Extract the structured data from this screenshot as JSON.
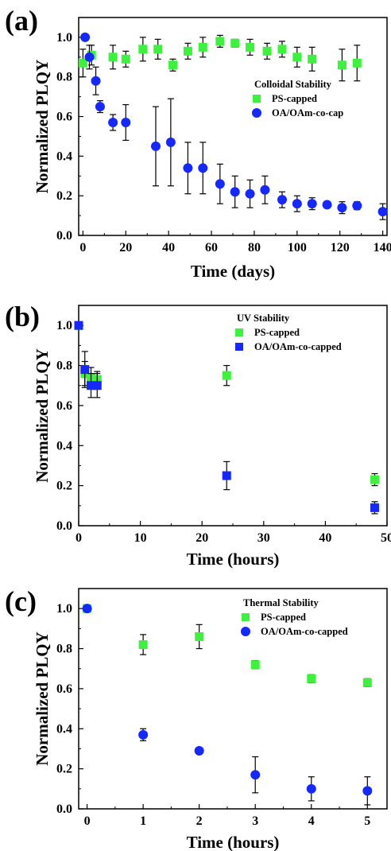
{
  "chart_data": [
    {
      "panel": "(a)",
      "type": "scatter",
      "xlabel": "Time (days)",
      "ylabel": "Normalized PLQY",
      "xlim": [
        -2,
        142
      ],
      "ylim": [
        0,
        1.1
      ],
      "xticks": [
        0,
        20,
        40,
        60,
        80,
        100,
        120,
        140
      ],
      "yticks": [
        0.0,
        0.2,
        0.4,
        0.6,
        0.8,
        1.0
      ],
      "grid": false,
      "legend": {
        "position": "top-right",
        "title": "Colloidal Stability"
      },
      "series": [
        {
          "name": "PS-capped",
          "marker": "square",
          "color": "#3cf23c",
          "x": [
            0,
            4,
            14,
            20,
            28,
            35,
            42,
            49,
            56,
            64,
            71,
            78,
            86,
            93,
            100,
            107,
            121,
            128
          ],
          "y": [
            0.87,
            0.91,
            0.9,
            0.89,
            0.94,
            0.94,
            0.86,
            0.93,
            0.95,
            0.98,
            0.97,
            0.95,
            0.93,
            0.94,
            0.9,
            0.89,
            0.86,
            0.87
          ],
          "err": [
            0.07,
            0.05,
            0.06,
            0.04,
            0.06,
            0.05,
            0.03,
            0.04,
            0.05,
            0.03,
            0.02,
            0.04,
            0.04,
            0.04,
            0.05,
            0.06,
            0.08,
            0.09
          ]
        },
        {
          "name": "OA/OAm-co-cap",
          "marker": "circle",
          "color": "#1428ff",
          "x": [
            1,
            3,
            6,
            8,
            14,
            20,
            34,
            41,
            49,
            56,
            64,
            71,
            78,
            85,
            93,
            100,
            107,
            114,
            121,
            128,
            140
          ],
          "y": [
            1.0,
            0.9,
            0.78,
            0.65,
            0.57,
            0.57,
            0.45,
            0.47,
            0.34,
            0.34,
            0.26,
            0.22,
            0.21,
            0.23,
            0.18,
            0.16,
            0.16,
            0.155,
            0.14,
            0.15,
            0.12
          ],
          "err": [
            0.0,
            0.06,
            0.07,
            0.03,
            0.04,
            0.09,
            0.2,
            0.22,
            0.13,
            0.13,
            0.1,
            0.08,
            0.07,
            0.07,
            0.04,
            0.04,
            0.03,
            0.01,
            0.03,
            0.02,
            0.04
          ]
        }
      ]
    },
    {
      "panel": "(b)",
      "type": "scatter",
      "xlabel": "Time (hours)",
      "ylabel": "Normalized PLQY",
      "xlim": [
        0,
        50
      ],
      "ylim": [
        0,
        1.1
      ],
      "xticks": [
        0,
        10,
        20,
        30,
        40,
        50
      ],
      "yticks": [
        0.0,
        0.2,
        0.4,
        0.6,
        0.8,
        1.0
      ],
      "grid": false,
      "legend": {
        "position": "top-right",
        "title": "UV Stability"
      },
      "series": [
        {
          "name": "PS-capped",
          "marker": "square",
          "color": "#3cf23c",
          "x": [
            0,
            1,
            2,
            3,
            24,
            48
          ],
          "y": [
            1.0,
            0.76,
            0.74,
            0.73,
            0.75,
            0.23
          ],
          "err": [
            0.0,
            0.06,
            0.05,
            0.04,
            0.05,
            0.03
          ]
        },
        {
          "name": "OA/OAm-co-capped",
          "marker": "square",
          "color": "#1428ff",
          "x": [
            0,
            1,
            2,
            3,
            24,
            48
          ],
          "y": [
            1.0,
            0.78,
            0.7,
            0.7,
            0.25,
            0.09
          ],
          "err": [
            0.0,
            0.09,
            0.06,
            0.06,
            0.07,
            0.03
          ]
        }
      ]
    },
    {
      "panel": "(c)",
      "type": "scatter",
      "xlabel": "Time (hours)",
      "ylabel": "Normalized PLQY",
      "xlim": [
        -0.15,
        5.35
      ],
      "ylim": [
        0,
        1.1
      ],
      "xticks": [
        0,
        1,
        2,
        3,
        4,
        5
      ],
      "yticks": [
        0.0,
        0.2,
        0.4,
        0.6,
        0.8,
        1.0
      ],
      "grid": false,
      "legend": {
        "position": "top-right",
        "title": "Thermal Stability"
      },
      "series": [
        {
          "name": "PS-capped",
          "marker": "square",
          "color": "#3cf23c",
          "x": [
            0,
            1,
            2,
            3,
            4,
            5
          ],
          "y": [
            1.0,
            0.82,
            0.86,
            0.72,
            0.65,
            0.63
          ],
          "err": [
            0.0,
            0.05,
            0.06,
            0.02,
            0.02,
            0.02
          ]
        },
        {
          "name": "OA/OAm-co-capped",
          "marker": "circle",
          "color": "#1428ff",
          "x": [
            0,
            1,
            2,
            3,
            4,
            5
          ],
          "y": [
            1.0,
            0.37,
            0.29,
            0.17,
            0.1,
            0.09
          ],
          "err": [
            0.0,
            0.03,
            0.01,
            0.09,
            0.06,
            0.07
          ]
        }
      ]
    }
  ]
}
